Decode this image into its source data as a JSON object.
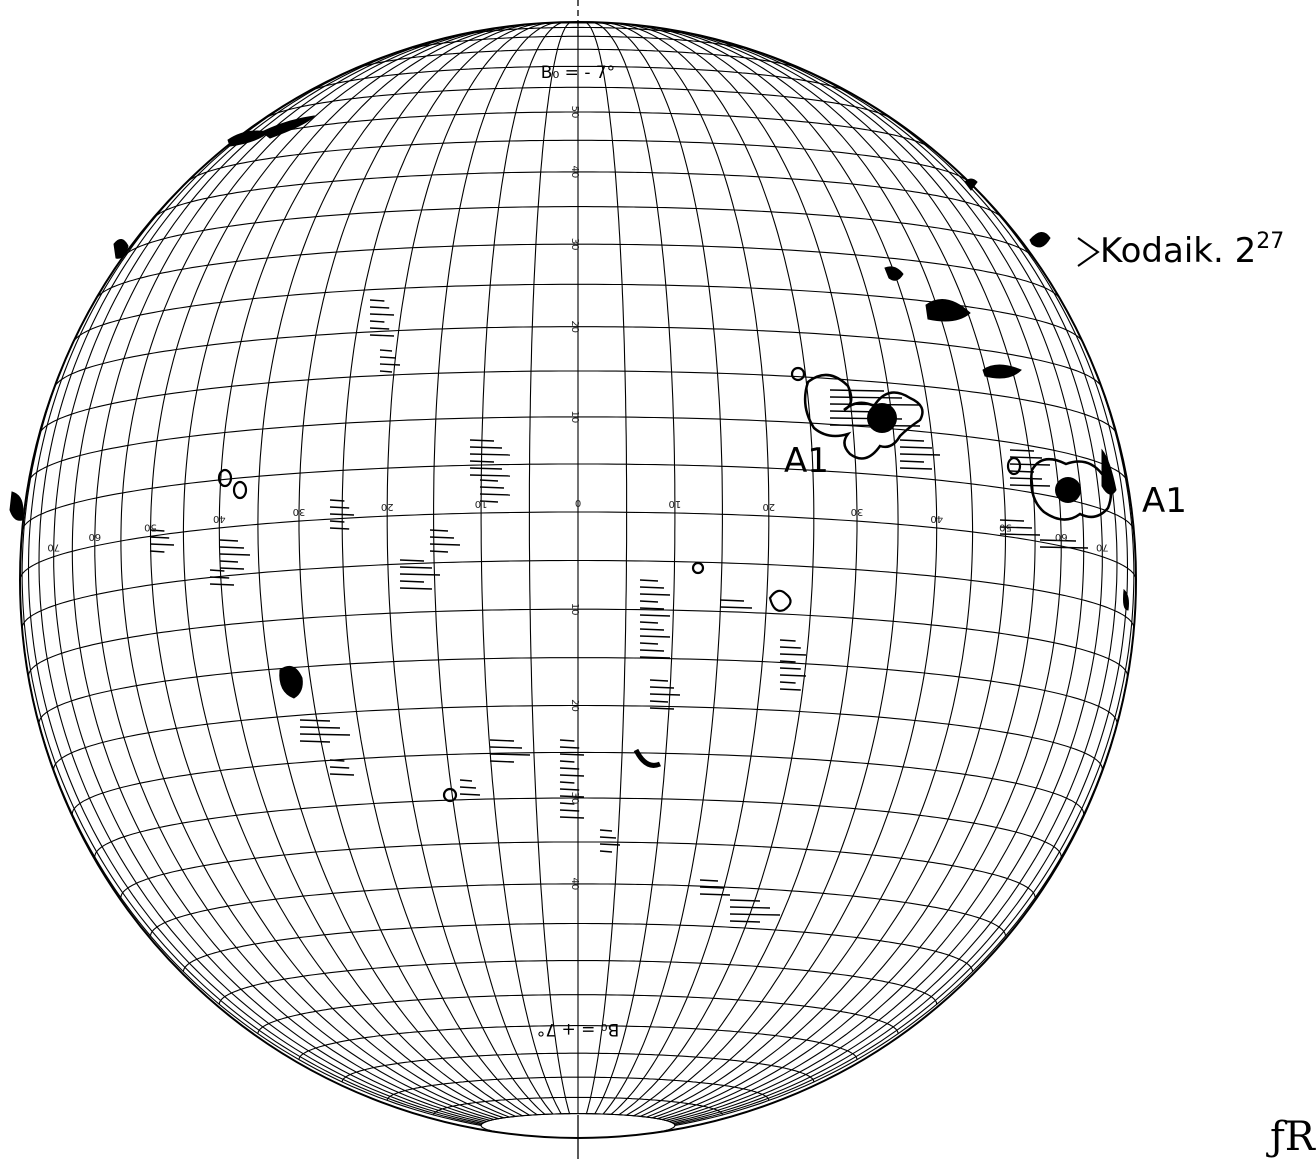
{
  "header": {
    "b_top": "B₀ = - 7°",
    "b_bottom": "B₀ = + 7°"
  },
  "source": {
    "label": "Kodaik. 2",
    "superscript": "27"
  },
  "regions": [
    {
      "id": "A1-center",
      "label": "A1"
    },
    {
      "id": "A1-limb",
      "label": "A1"
    }
  ],
  "longitude_labels": [
    "70",
    "60",
    "50",
    "40",
    "30",
    "20",
    "10",
    "0",
    "10",
    "20",
    "30",
    "40",
    "50",
    "60",
    "70"
  ],
  "latitude_labels": [
    "50",
    "40",
    "30",
    "20",
    "10",
    "10",
    "20",
    "30",
    "40"
  ],
  "signature": "ƒR",
  "colors": {
    "ink": "#000000",
    "paper": "#ffffff"
  }
}
